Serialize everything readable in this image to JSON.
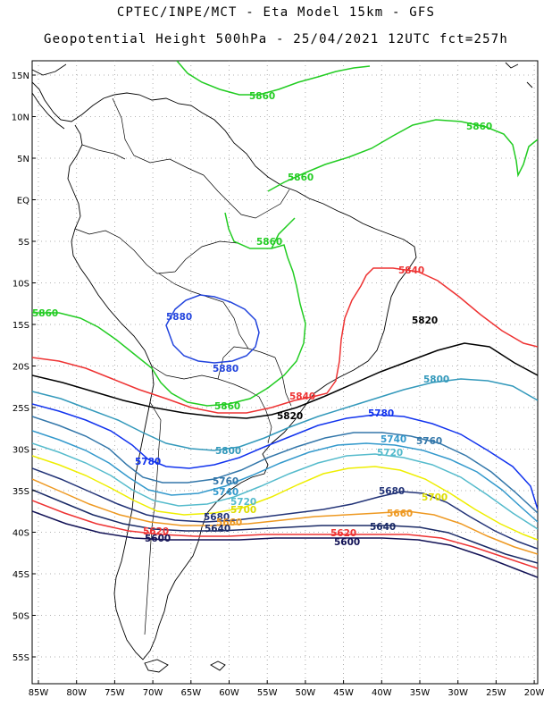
{
  "header": {
    "line1": "CPTEC/INPE/MCT -  Eta Model 15km - GFS",
    "line2": "Geopotential Height 500hPa - 25/04/2021 12UTC fct=257h"
  },
  "axes": {
    "lat_labels": [
      "15N",
      "10N",
      "5N",
      "EQ",
      "5S",
      "10S",
      "15S",
      "20S",
      "25S",
      "30S",
      "35S",
      "40S",
      "45S",
      "50S",
      "55S"
    ],
    "lon_labels": [
      "85W",
      "80W",
      "75W",
      "70W",
      "65W",
      "60W",
      "55W",
      "50W",
      "45W",
      "40W",
      "35W",
      "30W",
      "25W",
      "20W"
    ]
  },
  "contours": [
    {
      "name": "contour-5880",
      "value": 5880,
      "color": "#2244dd",
      "labels": [
        "5880",
        "5880"
      ]
    },
    {
      "name": "contour-5860",
      "value": 5860,
      "color": "#22cc22",
      "labels": [
        "5860",
        "5860",
        "5860",
        "5860",
        "5860",
        "5860"
      ]
    },
    {
      "name": "contour-5840",
      "value": 5840,
      "color": "#ee3333",
      "labels": [
        "5840",
        "5840"
      ]
    },
    {
      "name": "contour-5820",
      "value": 5820,
      "color": "#000000",
      "labels": [
        "5820",
        "5820"
      ]
    },
    {
      "name": "contour-5800",
      "value": 5800,
      "color": "#3399bb",
      "labels": [
        "5800",
        "5800"
      ]
    },
    {
      "name": "contour-5780",
      "value": 5780,
      "color": "#1133ee",
      "labels": [
        "5780",
        "5780"
      ]
    },
    {
      "name": "contour-5760",
      "value": 5760,
      "color": "#3377aa",
      "labels": [
        "5760",
        "5760"
      ]
    },
    {
      "name": "contour-5740",
      "value": 5740,
      "color": "#3399cc",
      "labels": [
        "5740",
        "5740"
      ]
    },
    {
      "name": "contour-5720",
      "value": 5720,
      "color": "#55bbcc",
      "labels": [
        "5720",
        "5720"
      ]
    },
    {
      "name": "contour-5700",
      "value": 5700,
      "color": "#eeee00",
      "labels": [
        "5700",
        "5700"
      ]
    },
    {
      "name": "contour-5680",
      "value": 5680,
      "color": "#223377",
      "labels": [
        "5680",
        "5680"
      ]
    },
    {
      "name": "contour-5660",
      "value": 5660,
      "color": "#ee9922",
      "labels": [
        "5660",
        "5660"
      ]
    },
    {
      "name": "contour-5640",
      "value": 5640,
      "color": "#1a2a66",
      "labels": [
        "5640",
        "5640"
      ]
    },
    {
      "name": "contour-5620",
      "value": 5620,
      "color": "#ee3333",
      "labels": [
        "5620",
        "5620"
      ]
    },
    {
      "name": "contour-5600",
      "value": 5600,
      "color": "#111155",
      "labels": [
        "5600",
        "5600"
      ]
    }
  ]
}
